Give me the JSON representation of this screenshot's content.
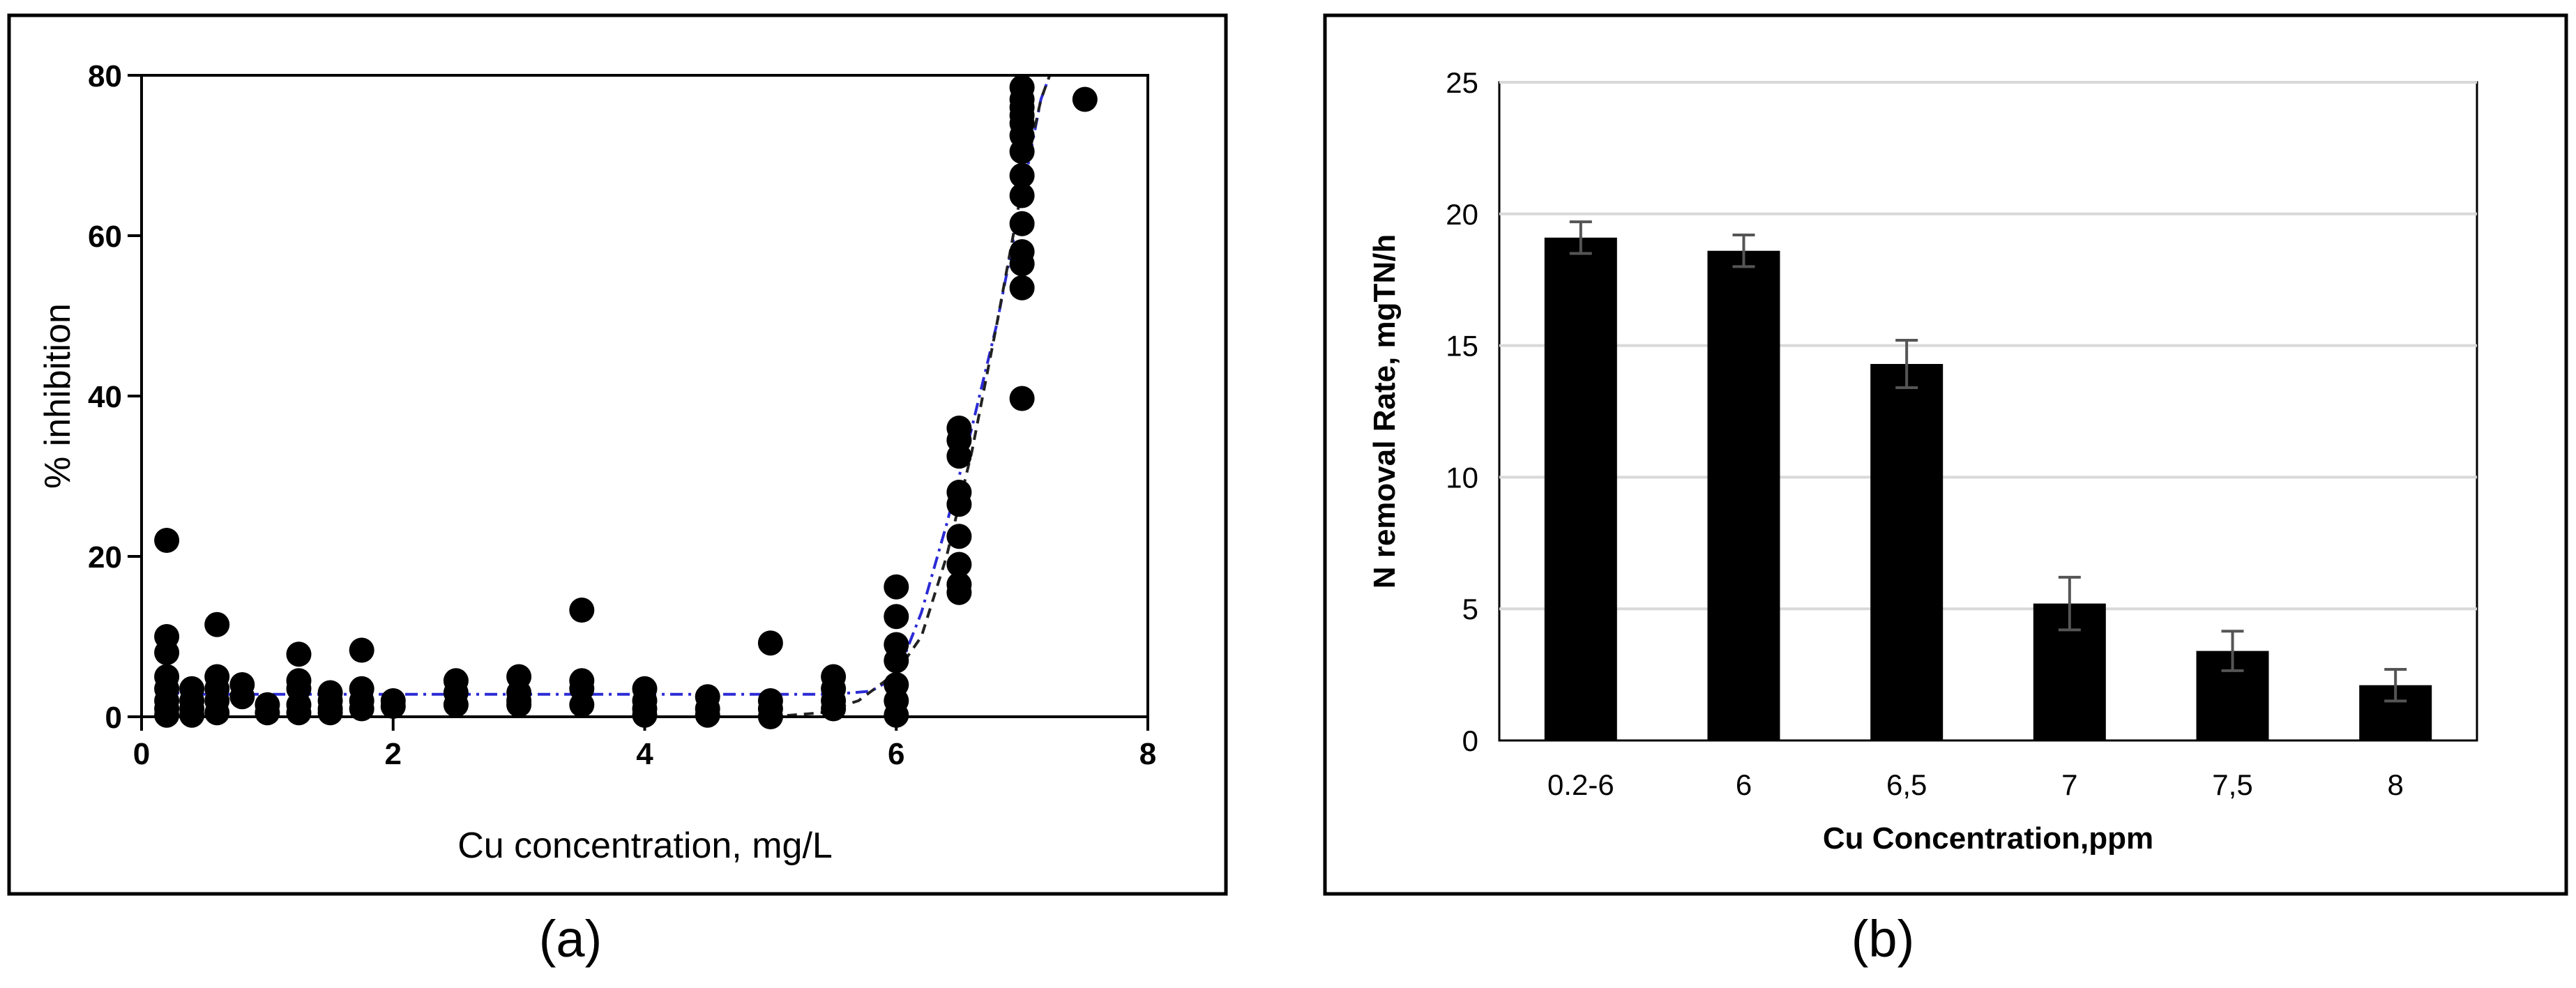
{
  "chart_data": [
    {
      "panel": "a",
      "type": "scatter",
      "caption": "(a)",
      "xlabel": "Cu concentration, mg/L",
      "ylabel": "% inhibition",
      "xlim": [
        0,
        8
      ],
      "ylim": [
        0,
        80
      ],
      "xticks": [
        0,
        2,
        4,
        6,
        8
      ],
      "yticks": [
        0,
        20,
        40,
        60,
        80
      ],
      "xtick_labels": [
        "0",
        "2",
        "4",
        "6",
        "8"
      ],
      "ytick_labels": [
        "0",
        "20",
        "40",
        "60",
        "80"
      ],
      "grid": false,
      "points": [
        [
          0.2,
          22
        ],
        [
          0.2,
          10
        ],
        [
          0.2,
          8
        ],
        [
          0.2,
          5
        ],
        [
          0.2,
          3.5
        ],
        [
          0.2,
          2
        ],
        [
          0.2,
          1
        ],
        [
          0.2,
          0.2
        ],
        [
          0.4,
          3.5
        ],
        [
          0.4,
          2
        ],
        [
          0.4,
          1
        ],
        [
          0.4,
          0.2
        ],
        [
          0.6,
          11.5
        ],
        [
          0.6,
          5
        ],
        [
          0.6,
          3.5
        ],
        [
          0.6,
          2
        ],
        [
          0.6,
          0.5
        ],
        [
          0.8,
          4
        ],
        [
          0.8,
          2.5
        ],
        [
          1.0,
          1.5
        ],
        [
          1.0,
          0.5
        ],
        [
          1.25,
          7.8
        ],
        [
          1.25,
          4.5
        ],
        [
          1.25,
          3.5
        ],
        [
          1.25,
          1.5
        ],
        [
          1.25,
          0.5
        ],
        [
          1.5,
          3
        ],
        [
          1.5,
          2
        ],
        [
          1.5,
          1
        ],
        [
          1.5,
          0.5
        ],
        [
          1.75,
          8.3
        ],
        [
          1.75,
          3.5
        ],
        [
          1.75,
          2
        ],
        [
          1.75,
          1
        ],
        [
          2.0,
          2
        ],
        [
          2.0,
          1.3
        ],
        [
          2.5,
          4.5
        ],
        [
          2.5,
          3
        ],
        [
          2.5,
          1.5
        ],
        [
          3.0,
          5
        ],
        [
          3.0,
          3
        ],
        [
          3.0,
          2
        ],
        [
          3.0,
          1.5
        ],
        [
          3.5,
          13.3
        ],
        [
          3.5,
          4.5
        ],
        [
          3.5,
          3.5
        ],
        [
          3.5,
          1.5
        ],
        [
          4.0,
          3.5
        ],
        [
          4.0,
          2
        ],
        [
          4.0,
          1
        ],
        [
          4.0,
          0.2
        ],
        [
          4.5,
          2.5
        ],
        [
          4.5,
          1
        ],
        [
          4.5,
          0.2
        ],
        [
          5.0,
          9.2
        ],
        [
          5.0,
          2
        ],
        [
          5.0,
          1
        ],
        [
          5.0,
          0
        ],
        [
          5.5,
          5
        ],
        [
          5.5,
          3.5
        ],
        [
          5.5,
          2
        ],
        [
          5.5,
          1
        ],
        [
          6.0,
          16.2
        ],
        [
          6.0,
          12.5
        ],
        [
          6.0,
          9
        ],
        [
          6.0,
          7
        ],
        [
          6.0,
          4
        ],
        [
          6.0,
          2
        ],
        [
          6.0,
          0.2
        ],
        [
          6.5,
          36
        ],
        [
          6.5,
          34.5
        ],
        [
          6.5,
          32.5
        ],
        [
          6.5,
          28
        ],
        [
          6.5,
          26.5
        ],
        [
          6.5,
          22.5
        ],
        [
          6.5,
          19
        ],
        [
          6.5,
          16.5
        ],
        [
          6.5,
          15.5
        ],
        [
          7.0,
          78.5
        ],
        [
          7.0,
          77
        ],
        [
          7.0,
          76
        ],
        [
          7.0,
          75
        ],
        [
          7.0,
          74
        ],
        [
          7.0,
          72.5
        ],
        [
          7.0,
          70.5
        ],
        [
          7.0,
          67.5
        ],
        [
          7.0,
          65
        ],
        [
          7.0,
          61.5
        ],
        [
          7.0,
          58
        ],
        [
          7.0,
          56.5
        ],
        [
          7.0,
          53.5
        ],
        [
          7.0,
          39.7
        ],
        [
          7.5,
          77
        ]
      ],
      "fit_lines": [
        {
          "name": "blue dash-dot fit",
          "color": "#2b2bd6",
          "style": "dash-dot",
          "x": [
            0.2,
            0.5,
            1.0,
            2.0,
            3.0,
            4.0,
            5.0,
            5.5,
            5.8,
            6.0,
            6.2,
            6.4,
            6.6,
            6.8,
            7.0,
            7.15,
            7.22
          ],
          "y": [
            3,
            2.8,
            2.8,
            2.8,
            2.8,
            2.8,
            2.8,
            2.8,
            3.2,
            5,
            13,
            24,
            36,
            49,
            65,
            77,
            80
          ]
        },
        {
          "name": "black dashed fit",
          "color": "#222222",
          "style": "dashed",
          "x": [
            5.0,
            5.4,
            5.7,
            6.0,
            6.2,
            6.4,
            6.6,
            6.8,
            7.0,
            7.15,
            7.22
          ],
          "y": [
            0,
            0.5,
            2,
            5.5,
            10,
            20,
            33,
            49,
            66,
            77,
            80
          ]
        }
      ]
    },
    {
      "panel": "b",
      "type": "bar",
      "caption": "(b)",
      "xlabel": "Cu Concentration,ppm",
      "ylabel": "N removal Rate,  mgTN/h",
      "categories": [
        "0.2-6",
        "6",
        "6,5",
        "7",
        "7,5",
        "8"
      ],
      "values": [
        19.1,
        18.6,
        14.3,
        5.2,
        3.4,
        2.1
      ],
      "errors": [
        0.6,
        0.6,
        0.9,
        1.0,
        0.75,
        0.6
      ],
      "ylim": [
        0,
        25
      ],
      "yticks": [
        0,
        5,
        10,
        15,
        20,
        25
      ],
      "ytick_labels": [
        "0",
        "5",
        "10",
        "15",
        "20",
        "25"
      ],
      "grid": true,
      "bar_color": "#000000",
      "grid_color": "#d9d9d9"
    }
  ]
}
